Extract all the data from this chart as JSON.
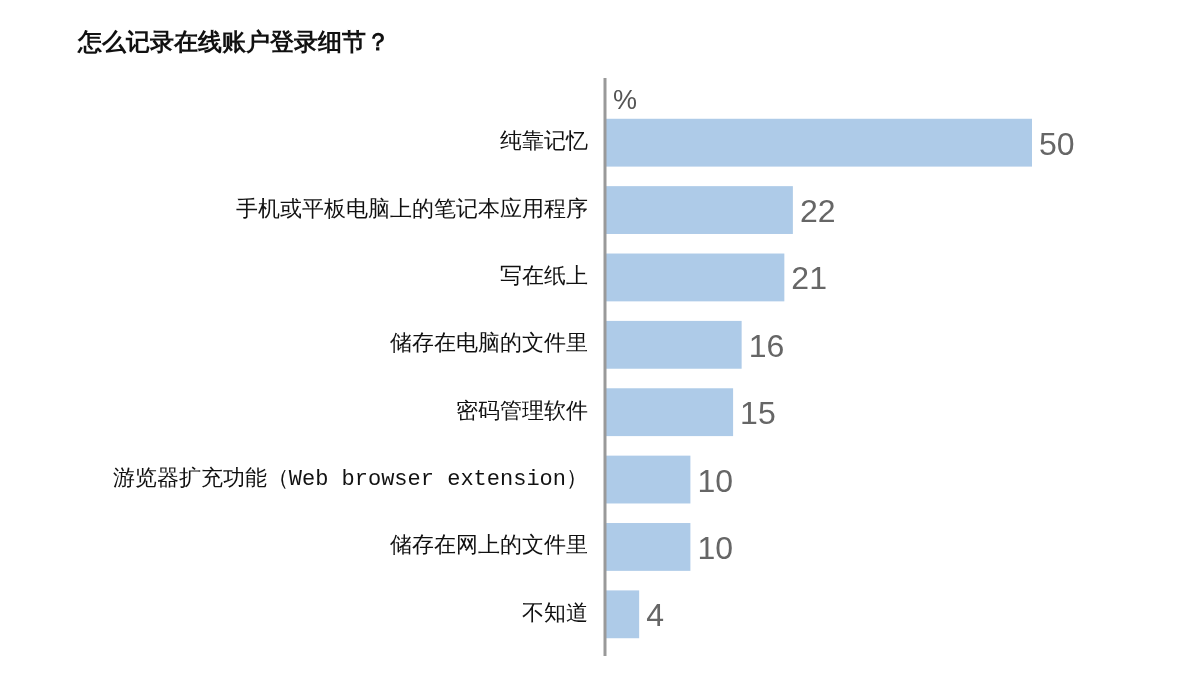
{
  "chart_data": {
    "type": "bar",
    "orientation": "horizontal",
    "title": "怎么记录在线账户登录细节？",
    "xlabel": "%",
    "categories": [
      "纯靠记忆",
      "手机或平板电脑上的笔记本应用程序",
      "写在纸上",
      "储存在电脑的文件里",
      "密码管理软件",
      "游览器扩充功能（Web browser extension）",
      "储存在网上的文件里",
      "不知道"
    ],
    "values": [
      50,
      22,
      21,
      16,
      15,
      10,
      10,
      4
    ],
    "color": "#aecbe8",
    "xlim": [
      0,
      50
    ],
    "tick_labels": "y",
    "data_labels": true
  }
}
